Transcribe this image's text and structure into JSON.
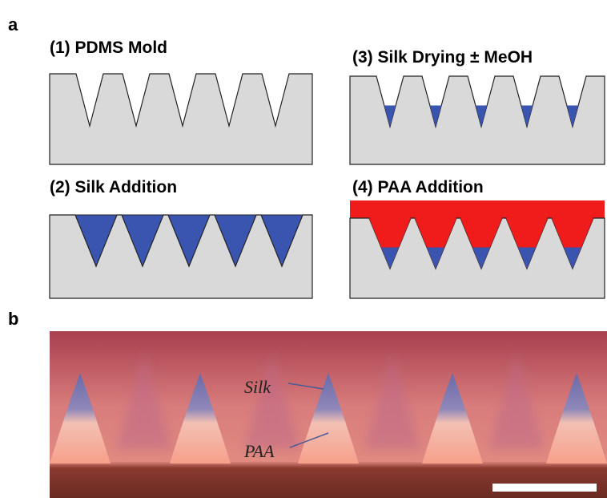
{
  "panel_a": {
    "label": "a",
    "steps": [
      "(1) PDMS Mold",
      "(2) Silk Addition",
      "(3) Silk Drying ± MeOH",
      "(4) PAA Addition"
    ]
  },
  "panel_b": {
    "label": "b",
    "annotations": [
      "Silk",
      "PAA"
    ]
  }
}
